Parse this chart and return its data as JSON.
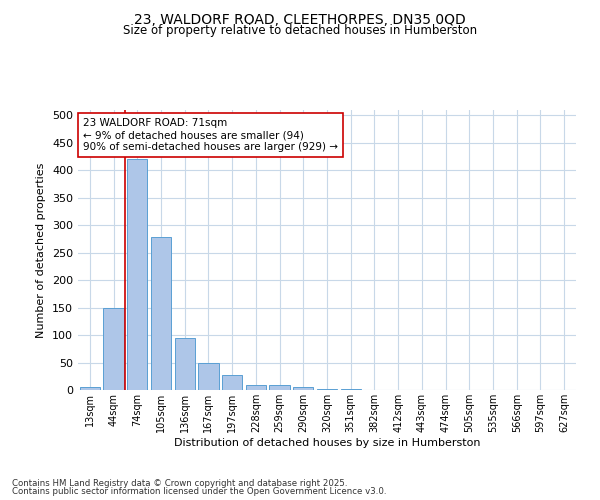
{
  "title1": "23, WALDORF ROAD, CLEETHORPES, DN35 0QD",
  "title2": "Size of property relative to detached houses in Humberston",
  "xlabel": "Distribution of detached houses by size in Humberston",
  "ylabel": "Number of detached properties",
  "bins": [
    "13sqm",
    "44sqm",
    "74sqm",
    "105sqm",
    "136sqm",
    "167sqm",
    "197sqm",
    "228sqm",
    "259sqm",
    "290sqm",
    "320sqm",
    "351sqm",
    "382sqm",
    "412sqm",
    "443sqm",
    "474sqm",
    "505sqm",
    "535sqm",
    "566sqm",
    "597sqm",
    "627sqm"
  ],
  "values": [
    5,
    150,
    420,
    278,
    95,
    50,
    27,
    10,
    10,
    5,
    2,
    1,
    0,
    0,
    0,
    0,
    0,
    0,
    0,
    0,
    0
  ],
  "bar_color": "#aec6e8",
  "bar_edge_color": "#5a9fd4",
  "marker_color": "#cc0000",
  "annotation_text": "23 WALDORF ROAD: 71sqm\n← 9% of detached houses are smaller (94)\n90% of semi-detached houses are larger (929) →",
  "annotation_box_color": "#ffffff",
  "annotation_box_edge": "#cc0000",
  "footer1": "Contains HM Land Registry data © Crown copyright and database right 2025.",
  "footer2": "Contains public sector information licensed under the Open Government Licence v3.0.",
  "background_color": "#ffffff",
  "grid_color": "#c8d8e8",
  "ylim": [
    0,
    510
  ],
  "yticks": [
    0,
    50,
    100,
    150,
    200,
    250,
    300,
    350,
    400,
    450,
    500
  ]
}
